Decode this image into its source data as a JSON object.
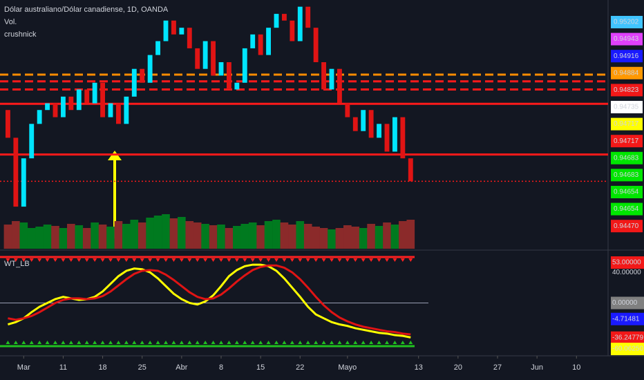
{
  "chart_data": {
    "type": "candlestick",
    "title": "Dólar australiano/Dólar canadiense, 1D, OANDA",
    "indicators": [
      "Vol.",
      "crushnick"
    ],
    "open": [
      0.9481,
      0.94752,
      0.94608,
      0.94709,
      0.94781,
      0.9481,
      0.94824,
      0.94795,
      0.94838,
      0.9481,
      0.94853,
      0.94824,
      0.94867,
      0.94795,
      0.94824,
      0.94781,
      0.94838,
      0.94896,
      0.94867,
      0.94925,
      0.94954,
      0.94997,
      0.94968,
      0.94982,
      0.94939,
      0.94896,
      0.94954,
      0.94882,
      0.9491,
      0.94853,
      0.94867,
      0.94939,
      0.94968,
      0.94925,
      0.94982,
      0.95011,
      0.94997,
      0.94954,
      0.95026,
      0.94982,
      0.9491,
      0.94853,
      0.94896,
      0.94824,
      0.94795,
      0.94766,
      0.9481,
      0.94752,
      0.94781,
      0.94723,
      0.94795,
      0.94709
    ],
    "close": [
      0.94752,
      0.94608,
      0.94709,
      0.94781,
      0.9481,
      0.94824,
      0.94795,
      0.94838,
      0.9481,
      0.94853,
      0.94824,
      0.94867,
      0.94795,
      0.94824,
      0.94781,
      0.94838,
      0.94896,
      0.94867,
      0.94925,
      0.94954,
      0.94997,
      0.94968,
      0.94982,
      0.94939,
      0.94896,
      0.94954,
      0.94882,
      0.9491,
      0.94853,
      0.94867,
      0.94939,
      0.94968,
      0.94925,
      0.94982,
      0.95011,
      0.94997,
      0.94954,
      0.95026,
      0.94982,
      0.9491,
      0.94853,
      0.94896,
      0.94824,
      0.94795,
      0.94766,
      0.9481,
      0.94752,
      0.94781,
      0.94723,
      0.94795,
      0.94709,
      0.94661
    ],
    "volume": [
      35,
      40,
      38,
      30,
      32,
      35,
      33,
      30,
      36,
      34,
      30,
      38,
      35,
      32,
      40,
      36,
      42,
      38,
      45,
      48,
      50,
      44,
      46,
      40,
      38,
      36,
      34,
      35,
      30,
      33,
      36,
      38,
      34,
      40,
      42,
      38,
      35,
      40,
      36,
      32,
      30,
      28,
      30,
      34,
      32,
      30,
      36,
      33,
      38,
      35,
      40,
      42
    ],
    "up_color": "#00e5ff",
    "down_color": "#e01414",
    "ylim": [
      0.9452,
      0.9504
    ],
    "levels": [
      {
        "value": 0.94884,
        "color": "#ff8c00",
        "style": "dashed"
      },
      {
        "value": 0.9487,
        "color": "#ff1a1a",
        "style": "dashed"
      },
      {
        "value": 0.94853,
        "color": "#ff1a1a",
        "style": "dashed"
      },
      {
        "value": 0.94823,
        "color": "#ff1a1a",
        "style": "solid"
      },
      {
        "value": 0.94717,
        "color": "#ff1a1a",
        "style": "solid"
      },
      {
        "value": 0.94661,
        "color": "#ff1a1a",
        "style": "dotted"
      }
    ],
    "price_labels": [
      0.95202,
      0.94943,
      0.94916,
      0.94884,
      0.94823,
      0.94735,
      0.94717,
      0.94717,
      0.94683,
      0.94683,
      0.94654,
      0.94654,
      {
        "value": 0.9447,
        "label": "0.94470"
      }
    ],
    "price_label_colors": [
      "#40c4ff",
      "#e040fb",
      "#1a1aff",
      "#ff9800",
      "#f21818",
      "#ffffff",
      "#ffff00",
      "#f21818",
      "#00e600",
      "#00e600",
      "#00e600",
      "#00e600",
      "#f21818"
    ],
    "xlim": [
      -1,
      76
    ],
    "xticks": [
      {
        "value": 2,
        "label": "Mar"
      },
      {
        "value": 7,
        "label": "11"
      },
      {
        "value": 12,
        "label": "18"
      },
      {
        "value": 17,
        "label": "25"
      },
      {
        "value": 22,
        "label": "Abr"
      },
      {
        "value": 27,
        "label": "8"
      },
      {
        "value": 32,
        "label": "15"
      },
      {
        "value": 37,
        "label": "22"
      },
      {
        "value": 43,
        "label": "Mayo"
      },
      {
        "value": 52,
        "label": "13"
      },
      {
        "value": 57,
        "label": "20"
      },
      {
        "value": 62,
        "label": "27"
      },
      {
        "value": 67,
        "label": "Jun"
      },
      {
        "value": 72,
        "label": "10"
      }
    ],
    "oscillator": {
      "title": "WT_LB",
      "ylim": [
        -60,
        60
      ],
      "series": [
        {
          "color": "#ffff00",
          "values": [
            -28,
            -25,
            -20,
            -12,
            -5,
            0,
            5,
            8,
            6,
            4,
            5,
            8,
            15,
            25,
            35,
            42,
            45,
            44,
            40,
            32,
            22,
            12,
            5,
            0,
            -2,
            2,
            10,
            22,
            35,
            43,
            48,
            50,
            50,
            48,
            42,
            32,
            20,
            8,
            -5,
            -15,
            -20,
            -25,
            -28,
            -30,
            -33,
            -35,
            -37,
            -39,
            -40,
            -42,
            -43,
            -45
          ]
        },
        {
          "color": "#e01414",
          "values": [
            -20,
            -22,
            -20,
            -17,
            -12,
            -6,
            0,
            4,
            6,
            6,
            5,
            6,
            9,
            15,
            23,
            31,
            38,
            42,
            43,
            42,
            37,
            30,
            22,
            14,
            8,
            5,
            6,
            11,
            19,
            28,
            36,
            43,
            47,
            49,
            49,
            46,
            40,
            31,
            20,
            8,
            -3,
            -12,
            -19,
            -24,
            -28,
            -31,
            -33,
            -35,
            -37,
            -38,
            -40,
            -41
          ]
        }
      ],
      "labels": [
        {
          "value": 53,
          "label": "53.00000"
        },
        {
          "value": 40,
          "label": "40.00000"
        },
        {
          "value": 0,
          "label": "0.00000"
        },
        -4.71481,
        -36.24779,
        {
          "value": -60.0625,
          "label": "-60.06250"
        }
      ],
      "label_colors": [
        "#f21818",
        "none",
        "#808080",
        "#1a1aff",
        "#f21818",
        "#ffff00"
      ]
    }
  }
}
